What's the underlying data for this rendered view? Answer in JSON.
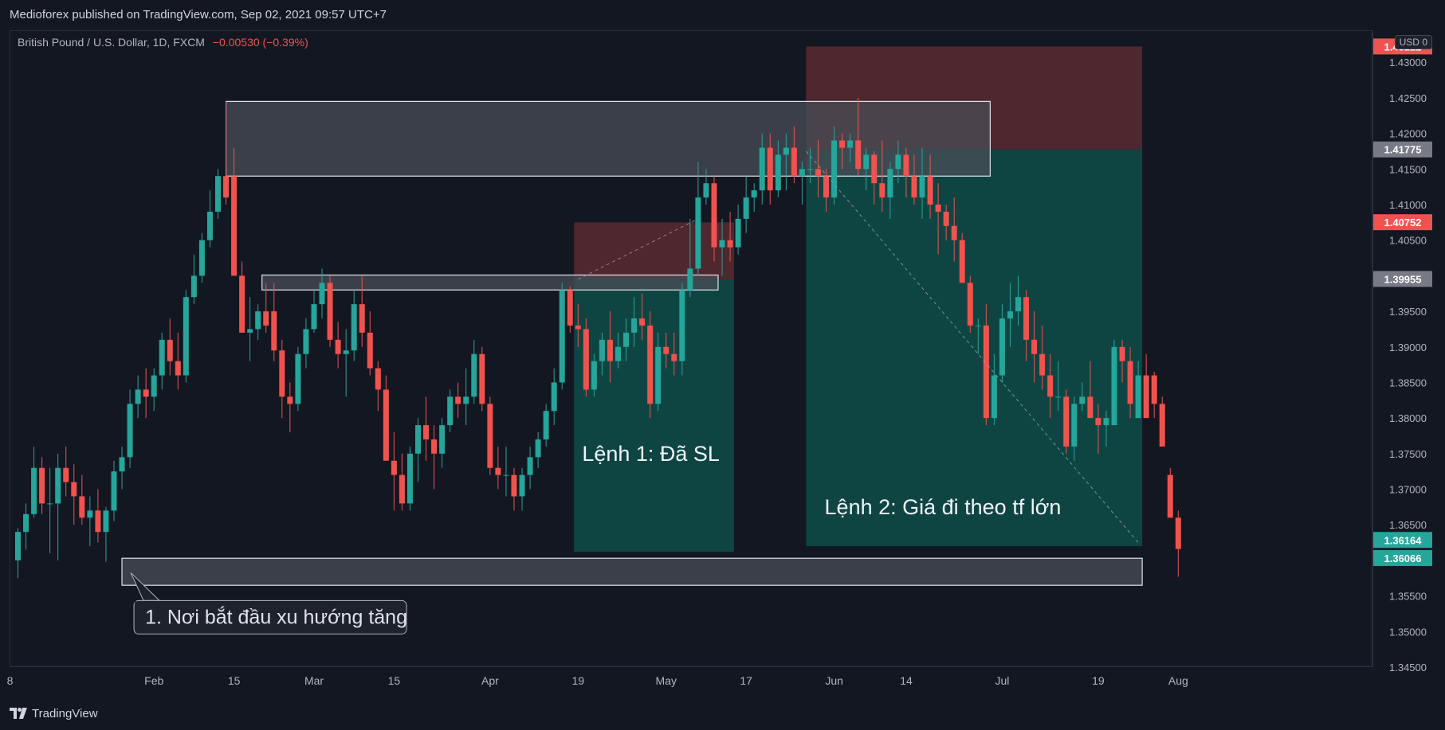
{
  "header": {
    "publisher_line": "Medioforex published on TradingView.com, Sep 02, 2021 09:57 UTC+7"
  },
  "legend": {
    "symbol": "British Pound / U.S. Dollar, 1D, FXCM",
    "change": "−0.00530 (−0.39%)"
  },
  "price_scale": {
    "currency": "USD",
    "currency_suffix": "0",
    "top_char": "1"
  },
  "footer": {
    "brand": "TradingView"
  },
  "colors": {
    "background": "#131722",
    "up": "#26a69a",
    "down": "#ef5350",
    "target_zone": "#0e4a47",
    "stop_zone": "#5a2a30",
    "sr_zone": "#4a4d57",
    "grid": "#2a2e39",
    "text": "#b2b5be"
  },
  "chart_data": {
    "type": "candlestick",
    "symbol": "GBPUSD",
    "timeframe": "1D",
    "ylim": [
      1.345,
      1.4345
    ],
    "y_ticks": [
      1.345,
      1.35,
      1.355,
      1.36,
      1.365,
      1.37,
      1.375,
      1.38,
      1.385,
      1.39,
      1.395,
      1.4,
      1.405,
      1.41,
      1.415,
      1.42,
      1.425,
      1.43
    ],
    "y_tick_labels": [
      "1.34500",
      "1.35000",
      "1.35500",
      "1.36000",
      "1.36500",
      "1.37000",
      "1.37500",
      "1.38000",
      "1.38500",
      "1.39000",
      "1.39500",
      "",
      "1.40500",
      "1.41000",
      "1.41500",
      "1.42000",
      "1.42500",
      "1.43000"
    ],
    "x_labels": [
      {
        "i": 0,
        "label": "8"
      },
      {
        "i": 18,
        "label": "Feb"
      },
      {
        "i": 28,
        "label": "15"
      },
      {
        "i": 38,
        "label": "Mar"
      },
      {
        "i": 48,
        "label": "15"
      },
      {
        "i": 60,
        "label": "Apr"
      },
      {
        "i": 71,
        "label": "19"
      },
      {
        "i": 82,
        "label": "May"
      },
      {
        "i": 92,
        "label": "17"
      },
      {
        "i": 103,
        "label": "Jun"
      },
      {
        "i": 112,
        "label": "14"
      },
      {
        "i": 124,
        "label": "Jul"
      },
      {
        "i": 136,
        "label": "19"
      },
      {
        "i": 146,
        "label": "Aug"
      }
    ],
    "price_labels": [
      {
        "value": 1.43222,
        "text": "1.43222",
        "color": "#ef5350"
      },
      {
        "value": 1.41775,
        "text": "1.41775",
        "color": "#787b86"
      },
      {
        "value": 1.40752,
        "text": "1.40752",
        "color": "#ef5350"
      },
      {
        "value": 1.39955,
        "text": "1.39955",
        "color": "#787b86"
      },
      {
        "value": 1.36164,
        "text": "1.36164",
        "color": "#26a69a"
      },
      {
        "value": 1.36066,
        "text": "1.36066",
        "color": "#26a69a"
      }
    ],
    "candles": [
      {
        "o": 1.36,
        "h": 1.3645,
        "l": 1.3575,
        "c": 1.364
      },
      {
        "o": 1.364,
        "h": 1.368,
        "l": 1.3615,
        "c": 1.3665
      },
      {
        "o": 1.3665,
        "h": 1.376,
        "l": 1.366,
        "c": 1.373
      },
      {
        "o": 1.373,
        "h": 1.3745,
        "l": 1.3665,
        "c": 1.368
      },
      {
        "o": 1.368,
        "h": 1.373,
        "l": 1.361,
        "c": 1.368
      },
      {
        "o": 1.368,
        "h": 1.375,
        "l": 1.36,
        "c": 1.373
      },
      {
        "o": 1.373,
        "h": 1.376,
        "l": 1.369,
        "c": 1.371
      },
      {
        "o": 1.371,
        "h": 1.3735,
        "l": 1.365,
        "c": 1.369
      },
      {
        "o": 1.369,
        "h": 1.372,
        "l": 1.365,
        "c": 1.366
      },
      {
        "o": 1.366,
        "h": 1.369,
        "l": 1.362,
        "c": 1.367
      },
      {
        "o": 1.367,
        "h": 1.37,
        "l": 1.3625,
        "c": 1.364
      },
      {
        "o": 1.364,
        "h": 1.3675,
        "l": 1.3598,
        "c": 1.367
      },
      {
        "o": 1.367,
        "h": 1.374,
        "l": 1.3655,
        "c": 1.3725
      },
      {
        "o": 1.3725,
        "h": 1.376,
        "l": 1.37,
        "c": 1.3745
      },
      {
        "o": 1.3745,
        "h": 1.384,
        "l": 1.373,
        "c": 1.382
      },
      {
        "o": 1.382,
        "h": 1.386,
        "l": 1.38,
        "c": 1.384
      },
      {
        "o": 1.384,
        "h": 1.387,
        "l": 1.38,
        "c": 1.383
      },
      {
        "o": 1.383,
        "h": 1.387,
        "l": 1.381,
        "c": 1.386
      },
      {
        "o": 1.386,
        "h": 1.392,
        "l": 1.384,
        "c": 1.391
      },
      {
        "o": 1.391,
        "h": 1.394,
        "l": 1.386,
        "c": 1.388
      },
      {
        "o": 1.388,
        "h": 1.392,
        "l": 1.384,
        "c": 1.386
      },
      {
        "o": 1.386,
        "h": 1.398,
        "l": 1.385,
        "c": 1.397
      },
      {
        "o": 1.397,
        "h": 1.403,
        "l": 1.396,
        "c": 1.4
      },
      {
        "o": 1.4,
        "h": 1.406,
        "l": 1.399,
        "c": 1.405
      },
      {
        "o": 1.405,
        "h": 1.412,
        "l": 1.404,
        "c": 1.409
      },
      {
        "o": 1.409,
        "h": 1.415,
        "l": 1.408,
        "c": 1.414
      },
      {
        "o": 1.414,
        "h": 1.4245,
        "l": 1.41,
        "c": 1.411
      },
      {
        "o": 1.414,
        "h": 1.418,
        "l": 1.4,
        "c": 1.4
      },
      {
        "o": 1.4,
        "h": 1.402,
        "l": 1.392,
        "c": 1.392
      },
      {
        "o": 1.392,
        "h": 1.397,
        "l": 1.388,
        "c": 1.3925
      },
      {
        "o": 1.3925,
        "h": 1.396,
        "l": 1.391,
        "c": 1.395
      },
      {
        "o": 1.395,
        "h": 1.399,
        "l": 1.392,
        "c": 1.393
      },
      {
        "o": 1.395,
        "h": 1.399,
        "l": 1.388,
        "c": 1.3895
      },
      {
        "o": 1.3895,
        "h": 1.391,
        "l": 1.38,
        "c": 1.383
      },
      {
        "o": 1.383,
        "h": 1.385,
        "l": 1.378,
        "c": 1.382
      },
      {
        "o": 1.382,
        "h": 1.39,
        "l": 1.381,
        "c": 1.389
      },
      {
        "o": 1.389,
        "h": 1.394,
        "l": 1.387,
        "c": 1.3925
      },
      {
        "o": 1.3925,
        "h": 1.398,
        "l": 1.392,
        "c": 1.396
      },
      {
        "o": 1.396,
        "h": 1.401,
        "l": 1.394,
        "c": 1.399
      },
      {
        "o": 1.399,
        "h": 1.4,
        "l": 1.39,
        "c": 1.391
      },
      {
        "o": 1.391,
        "h": 1.3935,
        "l": 1.387,
        "c": 1.389
      },
      {
        "o": 1.389,
        "h": 1.3925,
        "l": 1.383,
        "c": 1.3895
      },
      {
        "o": 1.3895,
        "h": 1.398,
        "l": 1.388,
        "c": 1.396
      },
      {
        "o": 1.396,
        "h": 1.4,
        "l": 1.39,
        "c": 1.392
      },
      {
        "o": 1.392,
        "h": 1.395,
        "l": 1.386,
        "c": 1.387
      },
      {
        "o": 1.387,
        "h": 1.388,
        "l": 1.381,
        "c": 1.384
      },
      {
        "o": 1.384,
        "h": 1.386,
        "l": 1.374,
        "c": 1.374
      },
      {
        "o": 1.374,
        "h": 1.378,
        "l": 1.367,
        "c": 1.372
      },
      {
        "o": 1.372,
        "h": 1.375,
        "l": 1.367,
        "c": 1.368
      },
      {
        "o": 1.368,
        "h": 1.376,
        "l": 1.367,
        "c": 1.375
      },
      {
        "o": 1.375,
        "h": 1.38,
        "l": 1.371,
        "c": 1.379
      },
      {
        "o": 1.379,
        "h": 1.383,
        "l": 1.374,
        "c": 1.377
      },
      {
        "o": 1.377,
        "h": 1.379,
        "l": 1.37,
        "c": 1.375
      },
      {
        "o": 1.375,
        "h": 1.38,
        "l": 1.373,
        "c": 1.379
      },
      {
        "o": 1.379,
        "h": 1.384,
        "l": 1.378,
        "c": 1.383
      },
      {
        "o": 1.383,
        "h": 1.385,
        "l": 1.38,
        "c": 1.382
      },
      {
        "o": 1.382,
        "h": 1.387,
        "l": 1.379,
        "c": 1.383
      },
      {
        "o": 1.383,
        "h": 1.391,
        "l": 1.382,
        "c": 1.389
      },
      {
        "o": 1.389,
        "h": 1.39,
        "l": 1.381,
        "c": 1.382
      },
      {
        "o": 1.382,
        "h": 1.383,
        "l": 1.372,
        "c": 1.373
      },
      {
        "o": 1.373,
        "h": 1.376,
        "l": 1.37,
        "c": 1.372
      },
      {
        "o": 1.372,
        "h": 1.376,
        "l": 1.369,
        "c": 1.372
      },
      {
        "o": 1.372,
        "h": 1.373,
        "l": 1.367,
        "c": 1.369
      },
      {
        "o": 1.369,
        "h": 1.373,
        "l": 1.367,
        "c": 1.372
      },
      {
        "o": 1.372,
        "h": 1.376,
        "l": 1.37,
        "c": 1.3745
      },
      {
        "o": 1.3745,
        "h": 1.378,
        "l": 1.373,
        "c": 1.377
      },
      {
        "o": 1.377,
        "h": 1.382,
        "l": 1.376,
        "c": 1.381
      },
      {
        "o": 1.381,
        "h": 1.387,
        "l": 1.379,
        "c": 1.385
      },
      {
        "o": 1.385,
        "h": 1.399,
        "l": 1.384,
        "c": 1.398
      },
      {
        "o": 1.398,
        "h": 1.3985,
        "l": 1.392,
        "c": 1.393
      },
      {
        "o": 1.393,
        "h": 1.396,
        "l": 1.39,
        "c": 1.3925
      },
      {
        "o": 1.3925,
        "h": 1.394,
        "l": 1.383,
        "c": 1.384
      },
      {
        "o": 1.384,
        "h": 1.389,
        "l": 1.383,
        "c": 1.388
      },
      {
        "o": 1.388,
        "h": 1.392,
        "l": 1.386,
        "c": 1.391
      },
      {
        "o": 1.391,
        "h": 1.395,
        "l": 1.385,
        "c": 1.388
      },
      {
        "o": 1.388,
        "h": 1.392,
        "l": 1.387,
        "c": 1.39
      },
      {
        "o": 1.39,
        "h": 1.394,
        "l": 1.388,
        "c": 1.392
      },
      {
        "o": 1.392,
        "h": 1.397,
        "l": 1.39,
        "c": 1.394
      },
      {
        "o": 1.394,
        "h": 1.3975,
        "l": 1.391,
        "c": 1.393
      },
      {
        "o": 1.393,
        "h": 1.395,
        "l": 1.38,
        "c": 1.382
      },
      {
        "o": 1.382,
        "h": 1.392,
        "l": 1.381,
        "c": 1.39
      },
      {
        "o": 1.39,
        "h": 1.392,
        "l": 1.387,
        "c": 1.389
      },
      {
        "o": 1.389,
        "h": 1.392,
        "l": 1.386,
        "c": 1.388
      },
      {
        "o": 1.388,
        "h": 1.399,
        "l": 1.386,
        "c": 1.398
      },
      {
        "o": 1.398,
        "h": 1.408,
        "l": 1.397,
        "c": 1.401
      },
      {
        "o": 1.401,
        "h": 1.416,
        "l": 1.4,
        "c": 1.411
      },
      {
        "o": 1.411,
        "h": 1.415,
        "l": 1.41,
        "c": 1.413
      },
      {
        "o": 1.413,
        "h": 1.414,
        "l": 1.402,
        "c": 1.404
      },
      {
        "o": 1.404,
        "h": 1.408,
        "l": 1.4,
        "c": 1.405
      },
      {
        "o": 1.405,
        "h": 1.409,
        "l": 1.402,
        "c": 1.404
      },
      {
        "o": 1.404,
        "h": 1.41,
        "l": 1.403,
        "c": 1.408
      },
      {
        "o": 1.408,
        "h": 1.414,
        "l": 1.406,
        "c": 1.411
      },
      {
        "o": 1.411,
        "h": 1.413,
        "l": 1.409,
        "c": 1.412
      },
      {
        "o": 1.412,
        "h": 1.42,
        "l": 1.41,
        "c": 1.418
      },
      {
        "o": 1.418,
        "h": 1.42,
        "l": 1.41,
        "c": 1.412
      },
      {
        "o": 1.412,
        "h": 1.419,
        "l": 1.411,
        "c": 1.417
      },
      {
        "o": 1.417,
        "h": 1.42,
        "l": 1.412,
        "c": 1.418
      },
      {
        "o": 1.418,
        "h": 1.421,
        "l": 1.413,
        "c": 1.414
      },
      {
        "o": 1.414,
        "h": 1.416,
        "l": 1.41,
        "c": 1.415
      },
      {
        "o": 1.415,
        "h": 1.418,
        "l": 1.413,
        "c": 1.415
      },
      {
        "o": 1.415,
        "h": 1.419,
        "l": 1.411,
        "c": 1.414
      },
      {
        "o": 1.414,
        "h": 1.415,
        "l": 1.409,
        "c": 1.411
      },
      {
        "o": 1.411,
        "h": 1.421,
        "l": 1.41,
        "c": 1.419
      },
      {
        "o": 1.419,
        "h": 1.42,
        "l": 1.415,
        "c": 1.418
      },
      {
        "o": 1.418,
        "h": 1.42,
        "l": 1.416,
        "c": 1.419
      },
      {
        "o": 1.419,
        "h": 1.425,
        "l": 1.414,
        "c": 1.415
      },
      {
        "o": 1.415,
        "h": 1.418,
        "l": 1.412,
        "c": 1.417
      },
      {
        "o": 1.417,
        "h": 1.4175,
        "l": 1.41,
        "c": 1.413
      },
      {
        "o": 1.413,
        "h": 1.419,
        "l": 1.409,
        "c": 1.411
      },
      {
        "o": 1.411,
        "h": 1.416,
        "l": 1.408,
        "c": 1.415
      },
      {
        "o": 1.415,
        "h": 1.419,
        "l": 1.413,
        "c": 1.417
      },
      {
        "o": 1.417,
        "h": 1.418,
        "l": 1.411,
        "c": 1.414
      },
      {
        "o": 1.414,
        "h": 1.417,
        "l": 1.41,
        "c": 1.411
      },
      {
        "o": 1.411,
        "h": 1.418,
        "l": 1.408,
        "c": 1.414
      },
      {
        "o": 1.414,
        "h": 1.417,
        "l": 1.408,
        "c": 1.41
      },
      {
        "o": 1.41,
        "h": 1.413,
        "l": 1.403,
        "c": 1.409
      },
      {
        "o": 1.409,
        "h": 1.41,
        "l": 1.405,
        "c": 1.407
      },
      {
        "o": 1.407,
        "h": 1.411,
        "l": 1.402,
        "c": 1.405
      },
      {
        "o": 1.405,
        "h": 1.406,
        "l": 1.399,
        "c": 1.399
      },
      {
        "o": 1.399,
        "h": 1.4,
        "l": 1.392,
        "c": 1.393
      },
      {
        "o": 1.393,
        "h": 1.394,
        "l": 1.389,
        "c": 1.393
      },
      {
        "o": 1.393,
        "h": 1.396,
        "l": 1.379,
        "c": 1.38
      },
      {
        "o": 1.38,
        "h": 1.389,
        "l": 1.379,
        "c": 1.386
      },
      {
        "o": 1.386,
        "h": 1.396,
        "l": 1.385,
        "c": 1.394
      },
      {
        "o": 1.394,
        "h": 1.399,
        "l": 1.39,
        "c": 1.395
      },
      {
        "o": 1.395,
        "h": 1.4,
        "l": 1.393,
        "c": 1.397
      },
      {
        "o": 1.397,
        "h": 1.398,
        "l": 1.388,
        "c": 1.391
      },
      {
        "o": 1.391,
        "h": 1.395,
        "l": 1.385,
        "c": 1.389
      },
      {
        "o": 1.389,
        "h": 1.393,
        "l": 1.384,
        "c": 1.386
      },
      {
        "o": 1.386,
        "h": 1.389,
        "l": 1.38,
        "c": 1.383
      },
      {
        "o": 1.383,
        "h": 1.388,
        "l": 1.381,
        "c": 1.383
      },
      {
        "o": 1.383,
        "h": 1.384,
        "l": 1.375,
        "c": 1.376
      },
      {
        "o": 1.376,
        "h": 1.383,
        "l": 1.374,
        "c": 1.382
      },
      {
        "o": 1.382,
        "h": 1.385,
        "l": 1.381,
        "c": 1.383
      },
      {
        "o": 1.383,
        "h": 1.388,
        "l": 1.38,
        "c": 1.38
      },
      {
        "o": 1.38,
        "h": 1.382,
        "l": 1.375,
        "c": 1.379
      },
      {
        "o": 1.379,
        "h": 1.381,
        "l": 1.376,
        "c": 1.38
      },
      {
        "o": 1.379,
        "h": 1.391,
        "l": 1.379,
        "c": 1.39
      },
      {
        "o": 1.39,
        "h": 1.391,
        "l": 1.385,
        "c": 1.388
      },
      {
        "o": 1.388,
        "h": 1.39,
        "l": 1.38,
        "c": 1.382
      },
      {
        "o": 1.38,
        "h": 1.388,
        "l": 1.38,
        "c": 1.386
      },
      {
        "o": 1.386,
        "h": 1.389,
        "l": 1.38,
        "c": 1.38
      },
      {
        "o": 1.386,
        "h": 1.3865,
        "l": 1.38,
        "c": 1.382
      },
      {
        "o": 1.382,
        "h": 1.383,
        "l": 1.376,
        "c": 1.376
      },
      {
        "o": 1.372,
        "h": 1.373,
        "l": 1.366,
        "c": 1.366
      },
      {
        "o": 1.366,
        "h": 1.367,
        "l": 1.3577,
        "c": 1.3616
      }
    ],
    "zones": [
      {
        "name": "resistance-zone-top",
        "y1": 1.414,
        "y2": 1.4245,
        "i1": 26,
        "i2": 121.5,
        "type": "sr"
      },
      {
        "name": "mid-zone",
        "y1": 1.398,
        "y2": 1.4001,
        "i1": 30.5,
        "i2": 87.5,
        "type": "sr"
      },
      {
        "name": "support-zone-bottom",
        "y1": 1.3565,
        "y2": 1.3603,
        "i1": 13,
        "i2": 140.5,
        "type": "sr"
      },
      {
        "name": "trade1-stop-zone",
        "y1": 1.3995,
        "y2": 1.4075,
        "i1": 69.5,
        "i2": 89.5,
        "type": "stop"
      },
      {
        "name": "trade1-target-zone",
        "y1": 1.3612,
        "y2": 1.3995,
        "i1": 69.5,
        "i2": 89.5,
        "type": "target"
      },
      {
        "name": "trade2-stop-zone",
        "y1": 1.41775,
        "y2": 1.43222,
        "i1": 98.5,
        "i2": 140.5,
        "type": "stop"
      },
      {
        "name": "trade2-target-zone",
        "y1": 1.362,
        "y2": 1.41775,
        "i1": 98.5,
        "i2": 140.5,
        "type": "target"
      }
    ],
    "lines": [
      {
        "name": "trade1-path",
        "from": {
          "i": 70,
          "y": 1.3995
        },
        "to": {
          "i": 85,
          "y": 1.408
        }
      },
      {
        "name": "trade2-path",
        "from": {
          "i": 98.5,
          "y": 1.4175
        },
        "to": {
          "i": 140,
          "y": 1.3625
        }
      }
    ],
    "annotations": [
      {
        "name": "trade1-label",
        "text": "Lệnh 1: Đã SL",
        "i": 70.5,
        "y": 1.374
      },
      {
        "name": "trade2-label",
        "text": "Lệnh 2: Giá đi theo tf lớn",
        "i": 100.8,
        "y": 1.3665
      },
      {
        "name": "callout-label",
        "text": "1. Nơi bắt đầu xu hướng tăng",
        "i": 14.5,
        "y": 1.352,
        "boxed": true
      }
    ]
  }
}
